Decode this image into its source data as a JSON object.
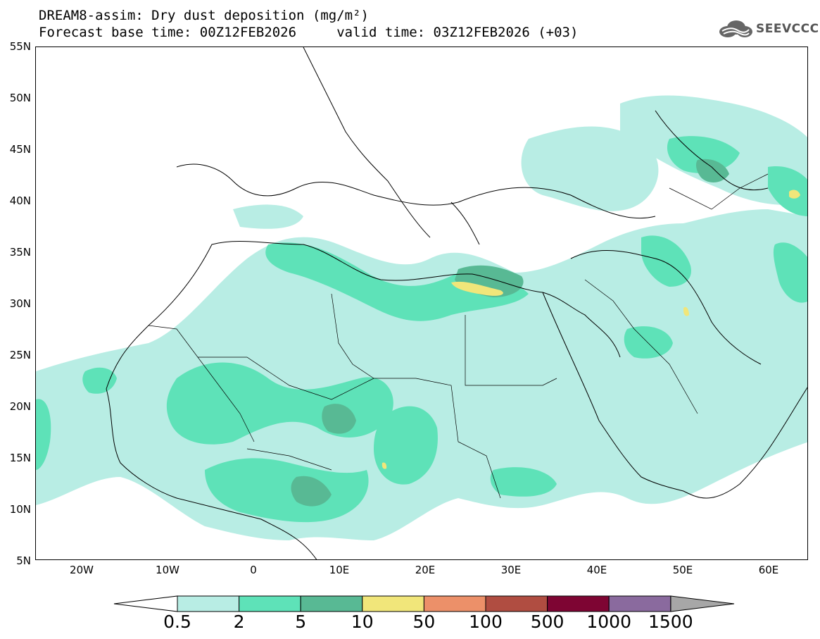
{
  "title": {
    "line1": "DREAM8-assim: Dry dust deposition (mg/m²)",
    "line2": "Forecast base time: 00Z12FEB2026     valid time: 03Z12FEB2026 (+03)"
  },
  "logo": {
    "icon": "cloud-logo-icon",
    "text": "SEEVCCC"
  },
  "map": {
    "lat_labels": [
      "55N",
      "50N",
      "45N",
      "40N",
      "35N",
      "30N",
      "25N",
      "20N",
      "15N",
      "10N",
      "5N"
    ],
    "lon_labels": [
      "20W",
      "10W",
      "0",
      "10E",
      "20E",
      "30E",
      "40E",
      "50E",
      "60E"
    ]
  },
  "colorbar": {
    "levels": [
      "0.5",
      "2",
      "5",
      "10",
      "50",
      "100",
      "500",
      "1000",
      "1500"
    ],
    "colors": [
      "#b8ede4",
      "#5ee2b8",
      "#58b994",
      "#f1e67a",
      "#ec9069",
      "#b04d41",
      "#7e0533",
      "#8a6a9e"
    ],
    "under_color": "#ffffff",
    "over_color": "#a7a7a7"
  }
}
